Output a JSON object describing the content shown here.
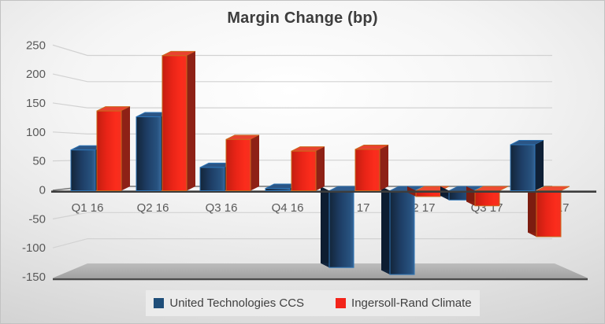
{
  "title": "Margin Change (bp)",
  "legend": {
    "items": [
      {
        "label": "United Technologies CCS",
        "color": "#1F4E79"
      },
      {
        "label": "Ingersoll-Rand Climate",
        "color": "#F3241A"
      }
    ]
  },
  "chart_data": {
    "type": "bar",
    "style": "3d-column",
    "title": "Margin Change (bp)",
    "xlabel": "",
    "ylabel": "",
    "categories": [
      "Q1 16",
      "Q2 16",
      "Q3 16",
      "Q4 16",
      "Q1 17",
      "Q2 17",
      "Q3 17",
      "Q4 17"
    ],
    "series": [
      {
        "name": "United Technologies CCS",
        "color": "#1F4E79",
        "values": [
          70,
          127,
          40,
          4,
          -132,
          -144,
          -16,
          79
        ]
      },
      {
        "name": "Ingersoll-Rand Climate",
        "color": "#F3241A",
        "values": [
          137,
          232,
          88,
          68,
          71,
          -10,
          -26,
          -79
        ]
      }
    ],
    "ylim": [
      -150,
      250
    ],
    "yticks": [
      250,
      200,
      150,
      100,
      50,
      0,
      -50,
      -100,
      -150
    ],
    "grid": true,
    "legend_position": "bottom"
  }
}
